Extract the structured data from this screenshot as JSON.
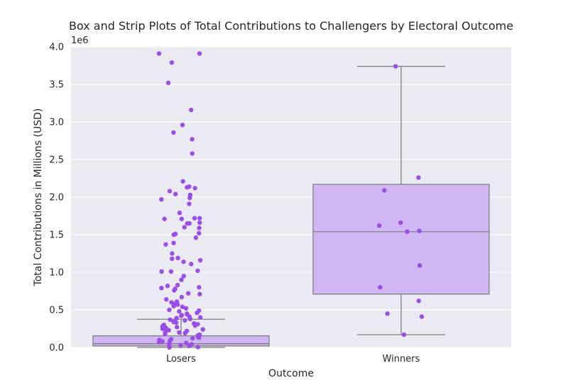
{
  "chart_data": {
    "type": "box+strip",
    "title": "Box and Strip Plots of Total Contributions to Challengers by Electoral Outcome",
    "xlabel": "Outcome",
    "ylabel": "Total Contributions in Millions (USD)",
    "y_offset_text": "1e6",
    "ylim": [
      0,
      4000000
    ],
    "yticks": [
      0,
      500000,
      1000000,
      1500000,
      2000000,
      2500000,
      3000000,
      3500000,
      4000000
    ],
    "ytick_labels": [
      "0.0",
      "0.5",
      "1.0",
      "1.5",
      "2.0",
      "2.5",
      "3.0",
      "3.5",
      "4.0"
    ],
    "grid": true,
    "categories": [
      "Losers",
      "Winners"
    ],
    "colors": {
      "background": "#eaeaf2",
      "grid": "#ffffff",
      "box_fill": "#d1b6f5",
      "box_edge": "#7f7f7f",
      "points": "#9b4de8"
    },
    "boxes": [
      {
        "category": "Losers",
        "whisker_low": 0,
        "q1": 20000,
        "median": 50000,
        "q3": 155000,
        "whisker_high": 375000
      },
      {
        "category": "Winners",
        "whisker_low": 170000,
        "q1": 710000,
        "median": 1540000,
        "q3": 2170000,
        "whisker_high": 3740000
      }
    ],
    "points": [
      {
        "category": "Losers",
        "values": [
          3910000,
          3910000,
          3790000,
          3520000,
          3160000,
          2960000,
          2860000,
          2770000,
          2580000,
          2210000,
          2140000,
          2130000,
          2120000,
          2080000,
          2040000,
          2030000,
          1990000,
          1970000,
          1910000,
          1790000,
          1720000,
          1720000,
          1710000,
          1710000,
          1660000,
          1650000,
          1650000,
          1600000,
          1590000,
          1520000,
          1510000,
          1500000,
          1460000,
          1390000,
          1370000,
          1250000,
          1190000,
          1180000,
          1160000,
          1140000,
          1110000,
          1020000,
          1010000,
          1010000,
          950000,
          900000,
          830000,
          820000,
          800000,
          790000,
          780000,
          760000,
          720000,
          710000,
          670000,
          640000,
          610000,
          600000,
          580000,
          570000,
          550000,
          540000,
          520000,
          500000,
          490000,
          480000,
          460000,
          450000,
          440000,
          430000,
          420000,
          410000,
          400000,
          390000,
          380000,
          370000,
          360000,
          350000,
          340000,
          330000,
          320000,
          310000,
          300000,
          290000,
          280000,
          270000,
          260000,
          250000,
          240000,
          230000,
          220000,
          210000,
          200000,
          190000,
          180000,
          170000,
          160000,
          150000,
          140000,
          130000,
          120000,
          110000,
          100000,
          90000,
          80000,
          70000,
          60000,
          50000,
          40000,
          30000,
          20000,
          10000,
          5000,
          0
        ]
      },
      {
        "category": "Winners",
        "values": [
          3740000,
          2260000,
          2090000,
          1660000,
          1620000,
          1550000,
          1540000,
          1090000,
          800000,
          620000,
          450000,
          410000,
          170000
        ]
      }
    ]
  }
}
